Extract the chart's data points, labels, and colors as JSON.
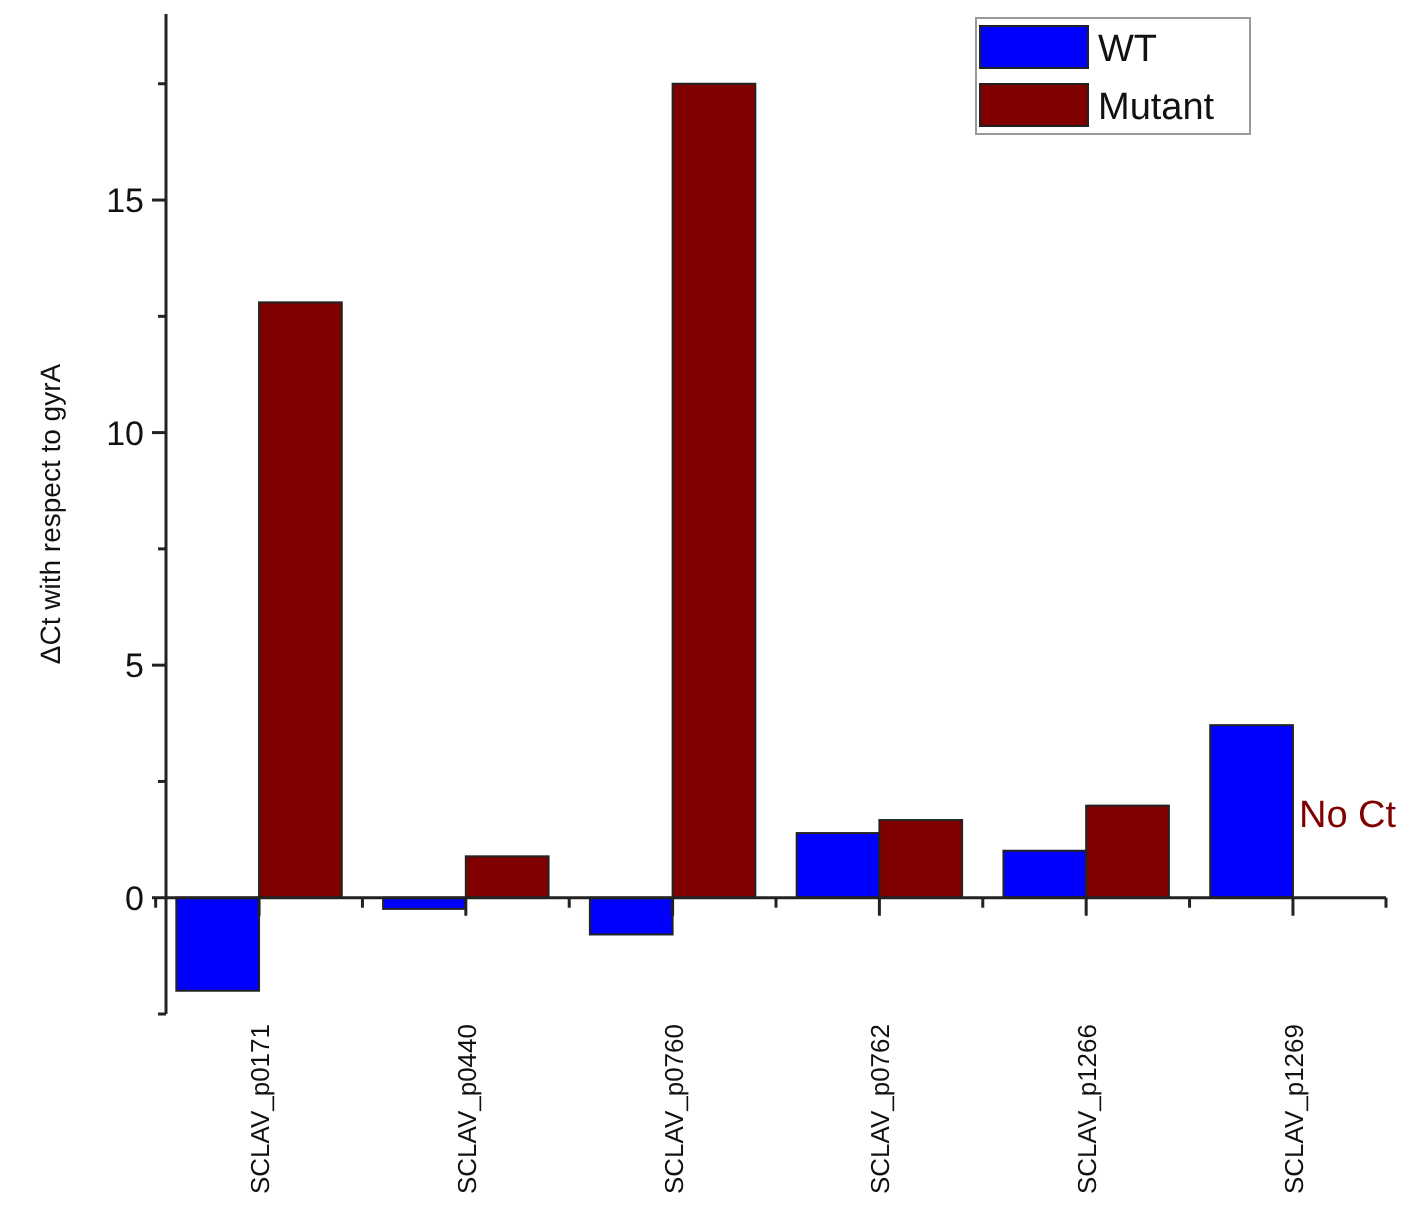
{
  "chart_data": {
    "type": "bar",
    "ylabel": "ΔCt with respect to gyrA",
    "categories": [
      "SCLAV_p0171",
      "SCLAV_p0440",
      "SCLAV_p0760",
      "SCLAV_p0762",
      "SCLAV_p1266",
      "SCLAV_p1269"
    ],
    "series": [
      {
        "name": "WT",
        "color": "#0000ff",
        "values": [
          -2.0,
          -0.24,
          -0.79,
          1.39,
          1.01,
          3.71
        ]
      },
      {
        "name": "Mutant",
        "color": "#800000",
        "values": [
          12.8,
          0.89,
          17.5,
          1.67,
          1.98,
          null
        ]
      }
    ],
    "ylim": [
      -2.5,
      19
    ],
    "yticks": [
      {
        "value": -2.5,
        "label": null
      },
      0,
      {
        "value": 2.5,
        "label": null
      },
      5,
      {
        "value": 7.5,
        "label": null
      },
      10,
      {
        "value": 12.5,
        "label": null
      },
      15,
      {
        "value": 17.5,
        "label": null
      }
    ],
    "annotations": [
      {
        "text": "No Ct",
        "x": "SCLAV_p1269",
        "y": 1.8
      }
    ],
    "legend": "top right"
  }
}
